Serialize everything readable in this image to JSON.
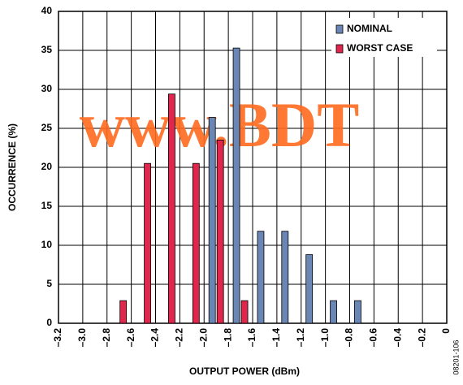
{
  "chart_data": {
    "type": "bar",
    "x_label": "OUTPUT POWER (dBm)",
    "y_label": "OCCURRENCE (%)",
    "watermark": "www.BDT",
    "figure_id": "08201-106",
    "x": [
      -2.7,
      -2.5,
      -2.3,
      -2.1,
      -1.9,
      -1.7,
      -1.5,
      -1.3,
      -1.1,
      -0.9,
      -0.7
    ],
    "series": [
      {
        "name": "NOMINAL",
        "color": "#6a86b4",
        "values": [
          null,
          null,
          null,
          null,
          26.4,
          35.3,
          11.8,
          11.8,
          8.8,
          2.9,
          2.9
        ]
      },
      {
        "name": "WORST CASE",
        "color": "#e0264c",
        "values": [
          2.9,
          20.5,
          29.4,
          20.5,
          23.5,
          2.9,
          null,
          null,
          null,
          null,
          null
        ]
      }
    ],
    "xlim": [
      -3.2,
      0
    ],
    "xticks": [
      {
        "value": -3.2,
        "label": "–3.2"
      },
      {
        "value": -3.0,
        "label": "–3.0"
      },
      {
        "value": -2.8,
        "label": "–2.8"
      },
      {
        "value": -2.6,
        "label": "–2.6"
      },
      {
        "value": -2.4,
        "label": "–2.4"
      },
      {
        "value": -2.2,
        "label": "–2.2"
      },
      {
        "value": -2.0,
        "label": "–2.0"
      },
      {
        "value": -1.8,
        "label": "–1.8"
      },
      {
        "value": -1.6,
        "label": "–1.6"
      },
      {
        "value": -1.4,
        "label": "–1.4"
      },
      {
        "value": -1.2,
        "label": "–1.2"
      },
      {
        "value": -1.0,
        "label": "–1.0"
      },
      {
        "value": -0.8,
        "label": "–0.8"
      },
      {
        "value": -0.6,
        "label": "–0.6"
      },
      {
        "value": -0.4,
        "label": "–0.4"
      },
      {
        "value": -0.2,
        "label": "–0.2"
      },
      0
    ],
    "ylim": [
      0,
      40
    ],
    "yticks": [
      0,
      5,
      10,
      15,
      20,
      25,
      30,
      35,
      40
    ],
    "grid": true,
    "legend": "top-right"
  }
}
